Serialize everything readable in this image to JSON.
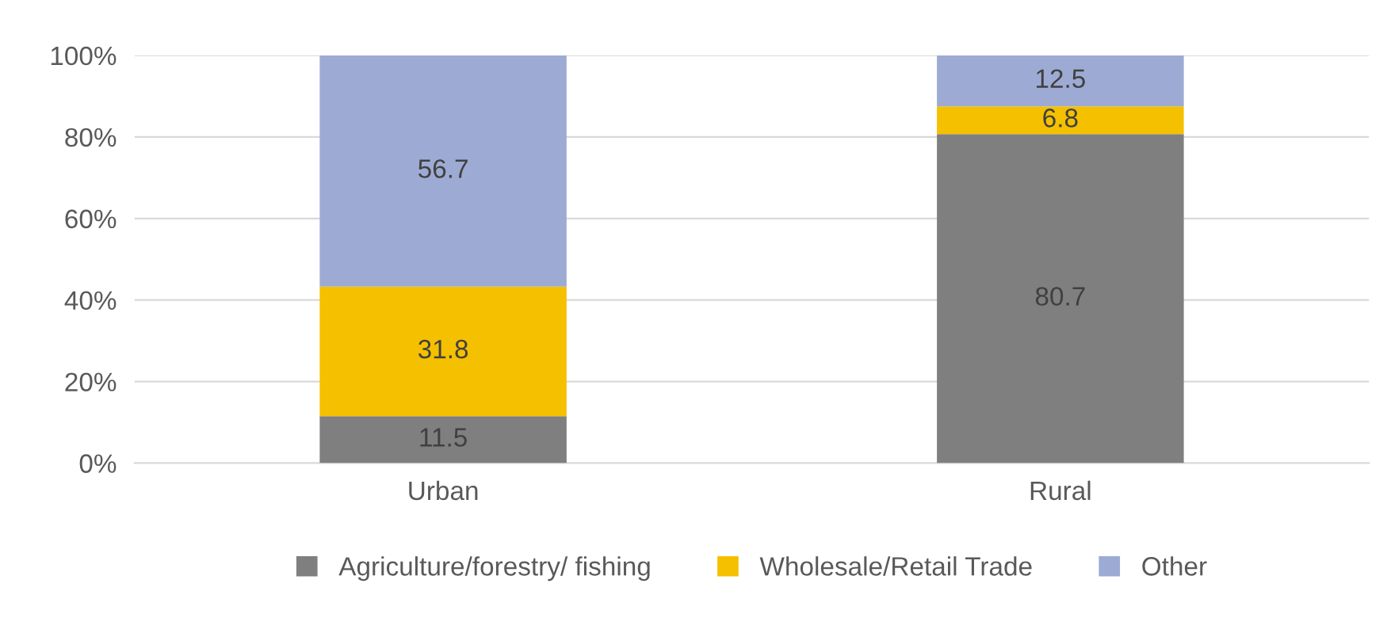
{
  "chart_data": {
    "type": "bar",
    "stacked": true,
    "categories": [
      "Urban",
      "Rural"
    ],
    "series": [
      {
        "name": "Agriculture/forestry/ fishing",
        "color": "#7f7f7f",
        "values": [
          11.5,
          80.7
        ]
      },
      {
        "name": "Wholesale/Retail Trade",
        "color": "#f5c000",
        "values": [
          31.8,
          6.8
        ]
      },
      {
        "name": "Other",
        "color": "#9dabd4",
        "values": [
          56.7,
          12.5
        ]
      }
    ],
    "ylim": [
      0,
      100
    ],
    "yticks": [
      {
        "value": 0,
        "label": "0%"
      },
      {
        "value": 20,
        "label": "20%"
      },
      {
        "value": 40,
        "label": "40%"
      },
      {
        "value": 60,
        "label": "60%"
      },
      {
        "value": 80,
        "label": "80%"
      },
      {
        "value": 100,
        "label": "100%"
      }
    ],
    "grid": "y",
    "legend": "bottom",
    "data_labels": true
  }
}
